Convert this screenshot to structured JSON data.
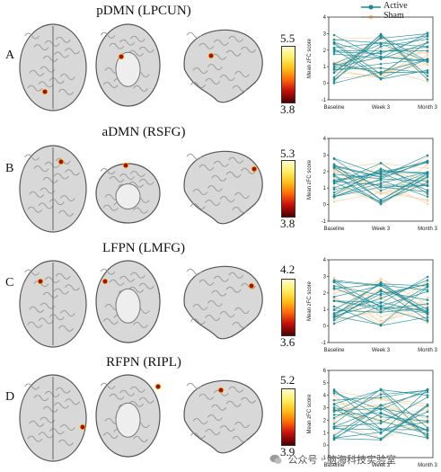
{
  "panels": [
    {
      "letter": "A",
      "title": "pDMN (LPCUN)",
      "cb_max": "5.5",
      "cb_min": "3.8"
    },
    {
      "letter": "B",
      "title": "aDMN (RSFG)",
      "cb_max": "5.3",
      "cb_min": "3.8"
    },
    {
      "letter": "C",
      "title": "LFPN (LMFG)",
      "cb_max": "4.2",
      "cb_min": "3.6"
    },
    {
      "letter": "D",
      "title": "RFPN (RIPL)",
      "cb_max": "5.2",
      "cb_min": "3.9"
    }
  ],
  "legend": {
    "active": "Active",
    "sham": "Sham"
  },
  "colors": {
    "active": "#1a8a96",
    "sham": "#f3cf9e",
    "hot_top": "#fffbd0",
    "hot_bottom": "#4a0000"
  },
  "watermark": "公众号 · 脑海科技实验室",
  "chart_data": [
    {
      "type": "line",
      "ylabel": "Mean zFC score",
      "categories": [
        "Baseline",
        "Week 3",
        "Month 3"
      ],
      "ylim": [
        -1,
        4
      ],
      "yticks": [
        -1,
        0,
        1,
        2,
        3,
        4
      ],
      "series": [
        {
          "name": "Active"
        },
        {
          "name": "Sham"
        }
      ]
    },
    {
      "type": "line",
      "ylabel": "Mean zFC score",
      "categories": [
        "Baseline",
        "Week 3",
        "Month 3"
      ],
      "ylim": [
        -1,
        4
      ],
      "yticks": [
        -1,
        0,
        1,
        2,
        3,
        4
      ],
      "series": [
        {
          "name": "Active"
        },
        {
          "name": "Sham"
        }
      ]
    },
    {
      "type": "line",
      "ylabel": "Mean zFC score",
      "categories": [
        "Baseline",
        "Week 3",
        "Month 3"
      ],
      "ylim": [
        -1,
        4
      ],
      "yticks": [
        -1,
        0,
        1,
        2,
        3,
        4
      ],
      "series": [
        {
          "name": "Active"
        },
        {
          "name": "Sham"
        }
      ]
    },
    {
      "type": "line",
      "ylabel": "Mean zFC score",
      "categories": [
        "Baseline",
        "Week 3",
        "Month 3"
      ],
      "ylim": [
        -1,
        6
      ],
      "yticks": [
        -1,
        0,
        1,
        2,
        3,
        4,
        5,
        6
      ],
      "series": [
        {
          "name": "Active"
        },
        {
          "name": "Sham"
        }
      ]
    }
  ]
}
